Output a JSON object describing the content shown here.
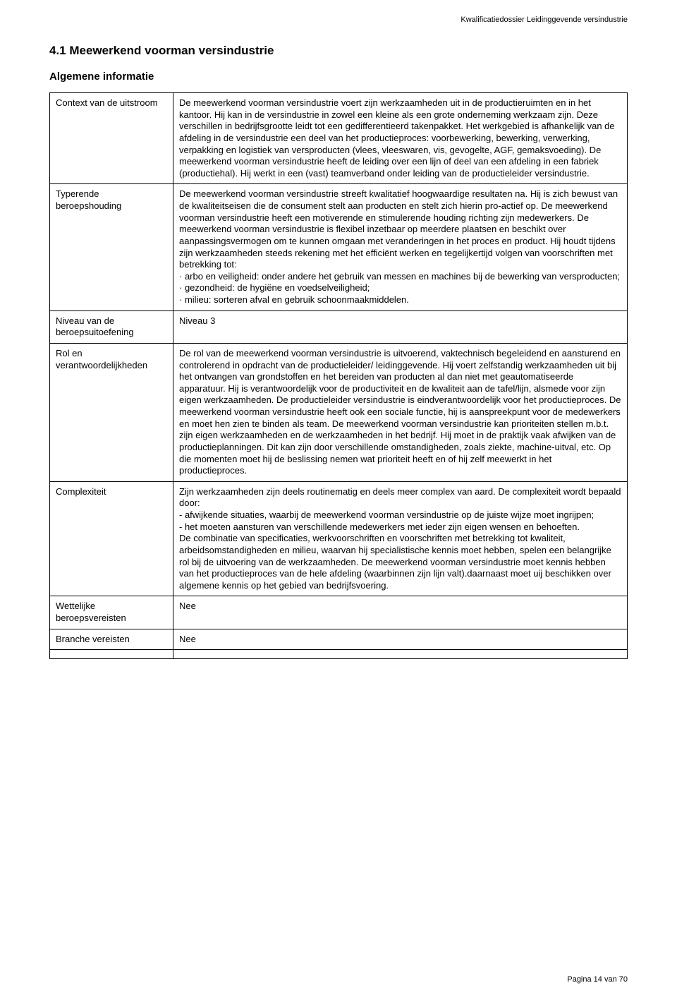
{
  "doc_header": "Kwalificatiedossier Leidinggevende versindustrie",
  "section_title": "4.1 Meewerkend voorman versindustrie",
  "section_subtitle": "Algemene informatie",
  "footer": "Pagina 14 van 70",
  "rows": [
    {
      "label": "Context van de uitstroom",
      "value": "De meewerkend voorman versindustrie voert zijn werkzaamheden uit in de productieruimten en in het kantoor. Hij kan in de versindustrie in zowel een kleine als een grote onderneming werkzaam zijn. Deze verschillen in bedrijfsgrootte leidt tot een gedifferentieerd takenpakket. Het werkgebied is afhankelijk van de afdeling in de versindustrie een deel van het productieproces: voorbewerking, bewerking, verwerking, verpakking en logistiek van versproducten (vlees, vleeswaren, vis, gevogelte, AGF, gemaksvoeding). De meewerkend voorman versindustrie heeft de leiding over een lijn of deel van een afdeling in een fabriek (productiehal). Hij werkt in een (vast) teamverband onder leiding van de productieleider versindustrie."
    },
    {
      "label": "Typerende beroepshouding",
      "value": "De meewerkend voorman versindustrie streeft kwalitatief hoogwaardige resultaten na. Hij is zich bewust van de kwaliteitseisen die de consument stelt aan producten en stelt zich hierin pro-actief op. De meewerkend voorman versindustrie heeft een motiverende en stimulerende houding richting zijn medewerkers. De meewerkend voorman versindustrie is flexibel inzetbaar op meerdere plaatsen en beschikt over aanpassingsvermogen om te kunnen omgaan met veranderingen in het proces en product. Hij houdt tijdens zijn werkzaamheden steeds rekening met het efficiënt werken en tegelijkertijd volgen van voorschriften met betrekking tot:\n· arbo en veiligheid: onder andere het gebruik van messen en machines bij de bewerking van versproducten;\n· gezondheid: de hygiëne en voedselveiligheid;\n· milieu: sorteren afval en gebruik schoonmaakmiddelen."
    },
    {
      "label": "Niveau van de beroepsuitoefening",
      "value": "Niveau 3"
    },
    {
      "label": "Rol en verantwoordelijkheden",
      "value": "De rol van de meewerkend voorman versindustrie is uitvoerend, vaktechnisch begeleidend en aansturend en controlerend in opdracht van de productieleider/ leidinggevende. Hij voert zelfstandig werkzaamheden uit bij het ontvangen van grondstoffen en het bereiden van producten al dan niet met geautomatiseerde apparatuur. Hij is verantwoordelijk voor de productiviteit en de kwaliteit aan de tafel/lijn, alsmede voor zijn eigen werkzaamheden. De productieleider versindustrie is eindverantwoordelijk voor het productieproces. De meewerkend voorman versindustrie heeft ook een sociale functie, hij is aanspreekpunt voor de medewerkers en moet hen zien te binden als team. De meewerkend voorman versindustrie kan prioriteiten stellen m.b.t. zijn eigen werkzaamheden en de werkzaamheden in het bedrijf. Hij moet in de praktijk vaak afwijken van de productieplanningen. Dit kan zijn door verschillende omstandigheden, zoals ziekte, machine-uitval, etc. Op die momenten moet hij de beslissing nemen wat prioriteit heeft en of hij zelf meewerkt in het productieproces."
    },
    {
      "label": "Complexiteit",
      "value": "Zijn werkzaamheden zijn deels routinematig en deels meer complex van aard. De complexiteit wordt bepaald door:\n- afwijkende situaties, waarbij de meewerkend voorman versindustrie op de juiste wijze moet ingrijpen;\n- het moeten aansturen van verschillende medewerkers met ieder zijn eigen wensen en behoeften.\nDe combinatie van specificaties, werkvoorschriften en voorschriften met betrekking tot kwaliteit, arbeidsomstandigheden en milieu, waarvan hij specialistische kennis moet hebben, spelen een belangrijke rol bij de uitvoering van de werkzaamheden. De meewerkend voorman versindustrie moet kennis hebben van het productieproces van de hele afdeling (waarbinnen zijn lijn valt).daarnaast moet uij beschikken over algemene kennis op het gebied van bedrijfsvoering."
    },
    {
      "label": "Wettelijke beroepsvereisten",
      "value": "Nee"
    },
    {
      "label": "Branche vereisten",
      "value": "Nee"
    },
    {
      "label": "",
      "value": ""
    }
  ]
}
